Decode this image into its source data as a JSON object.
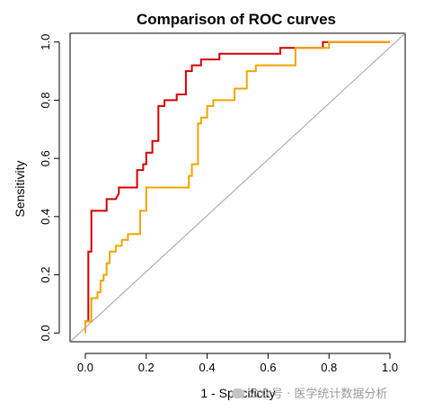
{
  "chart_data": {
    "type": "line",
    "title": "Comparison of ROC curves",
    "xlabel": "1 - Specificity",
    "ylabel": "Sensitivity",
    "xlim": [
      -0.05,
      1.05
    ],
    "ylim": [
      -0.03,
      1.03
    ],
    "xticks": [
      "0.0",
      "0.2",
      "0.4",
      "0.6",
      "0.8",
      "1.0"
    ],
    "yticks": [
      "0.0",
      "0.2",
      "0.4",
      "0.6",
      "0.8",
      "1.0"
    ],
    "grid": false,
    "legend": "none",
    "reference_line": {
      "x": [
        -0.05,
        1.05
      ],
      "y": [
        -0.03,
        1.03
      ],
      "color": "#a0a0a0"
    },
    "series": [
      {
        "color": "#d40000",
        "x": [
          0,
          0,
          0.01,
          0.01,
          0.02,
          0.02,
          0.07,
          0.07,
          0.1,
          0.11,
          0.11,
          0.17,
          0.17,
          0.19,
          0.19,
          0.2,
          0.2,
          0.22,
          0.22,
          0.24,
          0.24,
          0.26,
          0.26,
          0.3,
          0.3,
          0.33,
          0.33,
          0.35,
          0.35,
          0.36,
          0.36,
          0.38,
          0.38,
          0.44,
          0.44,
          0.46,
          0.46,
          0.64,
          0.64,
          0.78,
          0.78,
          0.79,
          0.79,
          1.0
        ],
        "y": [
          0,
          0.04,
          0.04,
          0.28,
          0.28,
          0.42,
          0.42,
          0.46,
          0.46,
          0.48,
          0.5,
          0.5,
          0.56,
          0.56,
          0.58,
          0.58,
          0.62,
          0.62,
          0.66,
          0.66,
          0.78,
          0.78,
          0.8,
          0.8,
          0.82,
          0.82,
          0.9,
          0.9,
          0.92,
          0.92,
          0.92,
          0.92,
          0.94,
          0.94,
          0.96,
          0.96,
          0.96,
          0.96,
          0.98,
          0.98,
          1.0,
          1.0,
          1.0,
          1.0
        ]
      },
      {
        "color": "#f0a500",
        "x": [
          0,
          0,
          0.02,
          0.02,
          0.04,
          0.04,
          0.05,
          0.05,
          0.06,
          0.06,
          0.07,
          0.07,
          0.08,
          0.08,
          0.1,
          0.1,
          0.12,
          0.12,
          0.14,
          0.14,
          0.18,
          0.18,
          0.2,
          0.2,
          0.34,
          0.34,
          0.35,
          0.35,
          0.37,
          0.37,
          0.38,
          0.38,
          0.4,
          0.4,
          0.42,
          0.42,
          0.49,
          0.49,
          0.53,
          0.53,
          0.56,
          0.56,
          0.69,
          0.69,
          0.79,
          0.79,
          0.8,
          0.8,
          1.0
        ],
        "y": [
          0,
          0.04,
          0.04,
          0.12,
          0.12,
          0.14,
          0.14,
          0.18,
          0.18,
          0.2,
          0.2,
          0.24,
          0.24,
          0.28,
          0.28,
          0.3,
          0.3,
          0.32,
          0.32,
          0.34,
          0.34,
          0.42,
          0.42,
          0.5,
          0.5,
          0.54,
          0.54,
          0.58,
          0.58,
          0.72,
          0.72,
          0.74,
          0.74,
          0.78,
          0.78,
          0.8,
          0.8,
          0.84,
          0.84,
          0.9,
          0.9,
          0.92,
          0.92,
          0.98,
          0.98,
          0.98,
          0.98,
          1.0,
          1.0
        ]
      }
    ]
  },
  "watermark": {
    "text": "公众号 · 医学统计数据分析"
  }
}
